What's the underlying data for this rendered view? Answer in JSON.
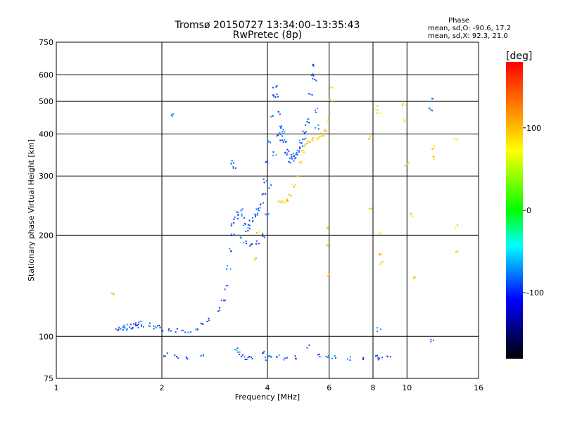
{
  "chart_data": {
    "type": "scatter",
    "title": "Tromsø 20150727 13:34:00–13:35:43",
    "subtitle": "RwPretec (8p)",
    "phase_title": "Phase",
    "phase_stats": [
      "mean, sd,O: -90.6, 17.2",
      "mean, sd,X:  92.3, 21.0"
    ],
    "xlabel": "Frequency [MHz]",
    "ylabel": "Stationary phase Virtual Height [km]",
    "x_scale": "log",
    "y_scale": "log",
    "xlim": [
      1,
      16
    ],
    "ylim": [
      75,
      750
    ],
    "x_ticks": [
      1,
      2,
      4,
      6,
      8,
      10,
      16
    ],
    "y_ticks": [
      75,
      100,
      200,
      300,
      400,
      500,
      600,
      750
    ],
    "grid": true,
    "colorbar": {
      "label": "[deg]",
      "range": [
        -180,
        180
      ],
      "ticks": [
        100,
        0,
        -100
      ],
      "colors": [
        "#ff0000",
        "#ff8000",
        "#ffff00",
        "#00ff00",
        "#00ffff",
        "#0000ff",
        "#000000"
      ]
    },
    "o_trace_points": [
      [
        1.5,
        104
      ],
      [
        1.53,
        106
      ],
      [
        1.56,
        107
      ],
      [
        1.58,
        105
      ],
      [
        1.61,
        108
      ],
      [
        1.64,
        106
      ],
      [
        1.67,
        109
      ],
      [
        1.7,
        107
      ],
      [
        1.73,
        110
      ],
      [
        1.76,
        108
      ],
      [
        1.85,
        108
      ],
      [
        1.9,
        106
      ],
      [
        1.95,
        107
      ],
      [
        2.0,
        105
      ],
      [
        2.1,
        104
      ],
      [
        2.2,
        104
      ],
      [
        2.3,
        103
      ],
      [
        2.4,
        104
      ],
      [
        2.5,
        105
      ],
      [
        2.6,
        108
      ],
      [
        2.7,
        112
      ],
      [
        2.9,
        120
      ],
      [
        3.0,
        128
      ],
      [
        3.05,
        140
      ],
      [
        3.1,
        160
      ],
      [
        3.15,
        180
      ],
      [
        3.18,
        200
      ],
      [
        3.2,
        215
      ],
      [
        3.25,
        225
      ],
      [
        3.3,
        232
      ],
      [
        3.35,
        236
      ],
      [
        3.4,
        228
      ],
      [
        3.45,
        216
      ],
      [
        3.5,
        208
      ],
      [
        3.55,
        212
      ],
      [
        3.6,
        220
      ],
      [
        3.65,
        228
      ],
      [
        3.7,
        232
      ],
      [
        3.75,
        236
      ],
      [
        3.8,
        240
      ],
      [
        3.85,
        250
      ],
      [
        3.9,
        265
      ],
      [
        3.95,
        290
      ],
      [
        4.0,
        330
      ],
      [
        4.05,
        380
      ],
      [
        4.1,
        450
      ],
      [
        4.15,
        520
      ],
      [
        4.2,
        555
      ],
      [
        4.25,
        520
      ],
      [
        4.3,
        460
      ],
      [
        4.35,
        420
      ],
      [
        4.4,
        400
      ],
      [
        4.45,
        410
      ],
      [
        4.5,
        380
      ],
      [
        4.6,
        355
      ],
      [
        4.7,
        345
      ],
      [
        4.8,
        340
      ],
      [
        4.9,
        350
      ],
      [
        5.0,
        365
      ],
      [
        5.1,
        390
      ],
      [
        5.2,
        440
      ],
      [
        5.3,
        520
      ],
      [
        5.35,
        600
      ],
      [
        5.4,
        640
      ],
      [
        5.45,
        580
      ],
      [
        5.5,
        470
      ],
      [
        5.55,
        420
      ],
      [
        3.35,
        198
      ],
      [
        3.45,
        190
      ],
      [
        3.6,
        186
      ],
      [
        3.75,
        190
      ],
      [
        3.9,
        200
      ],
      [
        4.0,
        230
      ],
      [
        4.1,
        280
      ],
      [
        4.2,
        350
      ],
      [
        4.3,
        400
      ],
      [
        4.4,
        380
      ],
      [
        4.5,
        350
      ],
      [
        4.6,
        335
      ],
      [
        4.7,
        333
      ],
      [
        4.8,
        345
      ],
      [
        4.9,
        360
      ],
      [
        5.0,
        380
      ],
      [
        5.1,
        405
      ],
      [
        5.2,
        430
      ],
      [
        3.18,
        330
      ],
      [
        3.22,
        318
      ],
      [
        2.15,
        455
      ],
      [
        11.8,
        505
      ],
      [
        11.7,
        475
      ],
      [
        2.05,
        88
      ],
      [
        2.2,
        87
      ],
      [
        2.35,
        86
      ],
      [
        2.6,
        88
      ],
      [
        3.25,
        92
      ],
      [
        3.3,
        89
      ],
      [
        3.4,
        87
      ],
      [
        3.5,
        86
      ],
      [
        3.6,
        87
      ],
      [
        3.9,
        89
      ],
      [
        4.0,
        86
      ],
      [
        4.1,
        88
      ],
      [
        4.3,
        87
      ],
      [
        4.5,
        86
      ],
      [
        4.8,
        87
      ],
      [
        5.2,
        93
      ],
      [
        5.6,
        88
      ],
      [
        5.9,
        87
      ],
      [
        6.2,
        87
      ],
      [
        6.8,
        86
      ],
      [
        7.5,
        86
      ],
      [
        8.2,
        87
      ],
      [
        8.4,
        86
      ],
      [
        8.9,
        87
      ],
      [
        11.8,
        97
      ],
      [
        8.3,
        105
      ]
    ],
    "x_trace_points": [
      [
        4.35,
        250
      ],
      [
        4.45,
        252
      ],
      [
        4.55,
        254
      ],
      [
        4.65,
        262
      ],
      [
        4.75,
        282
      ],
      [
        4.85,
        300
      ],
      [
        4.95,
        330
      ],
      [
        5.05,
        355
      ],
      [
        5.15,
        372
      ],
      [
        5.25,
        382
      ],
      [
        5.4,
        385
      ],
      [
        5.55,
        385
      ],
      [
        5.65,
        392
      ],
      [
        5.75,
        398
      ],
      [
        5.85,
        408
      ],
      [
        5.95,
        438
      ],
      [
        6.05,
        500
      ],
      [
        6.1,
        555
      ],
      [
        5.9,
        210
      ],
      [
        5.92,
        185
      ],
      [
        5.95,
        153
      ],
      [
        7.8,
        390
      ],
      [
        7.85,
        240
      ],
      [
        8.2,
        480
      ],
      [
        8.3,
        465
      ],
      [
        8.4,
        202
      ],
      [
        8.4,
        175
      ],
      [
        8.5,
        165
      ],
      [
        9.8,
        490
      ],
      [
        9.85,
        440
      ],
      [
        10.0,
        325
      ],
      [
        10.3,
        230
      ],
      [
        10.5,
        150
      ],
      [
        11.9,
        365
      ],
      [
        11.9,
        340
      ],
      [
        13.8,
        385
      ],
      [
        13.8,
        213
      ],
      [
        13.8,
        180
      ],
      [
        1.45,
        133
      ],
      [
        3.7,
        170
      ],
      [
        3.75,
        205
      ]
    ]
  }
}
